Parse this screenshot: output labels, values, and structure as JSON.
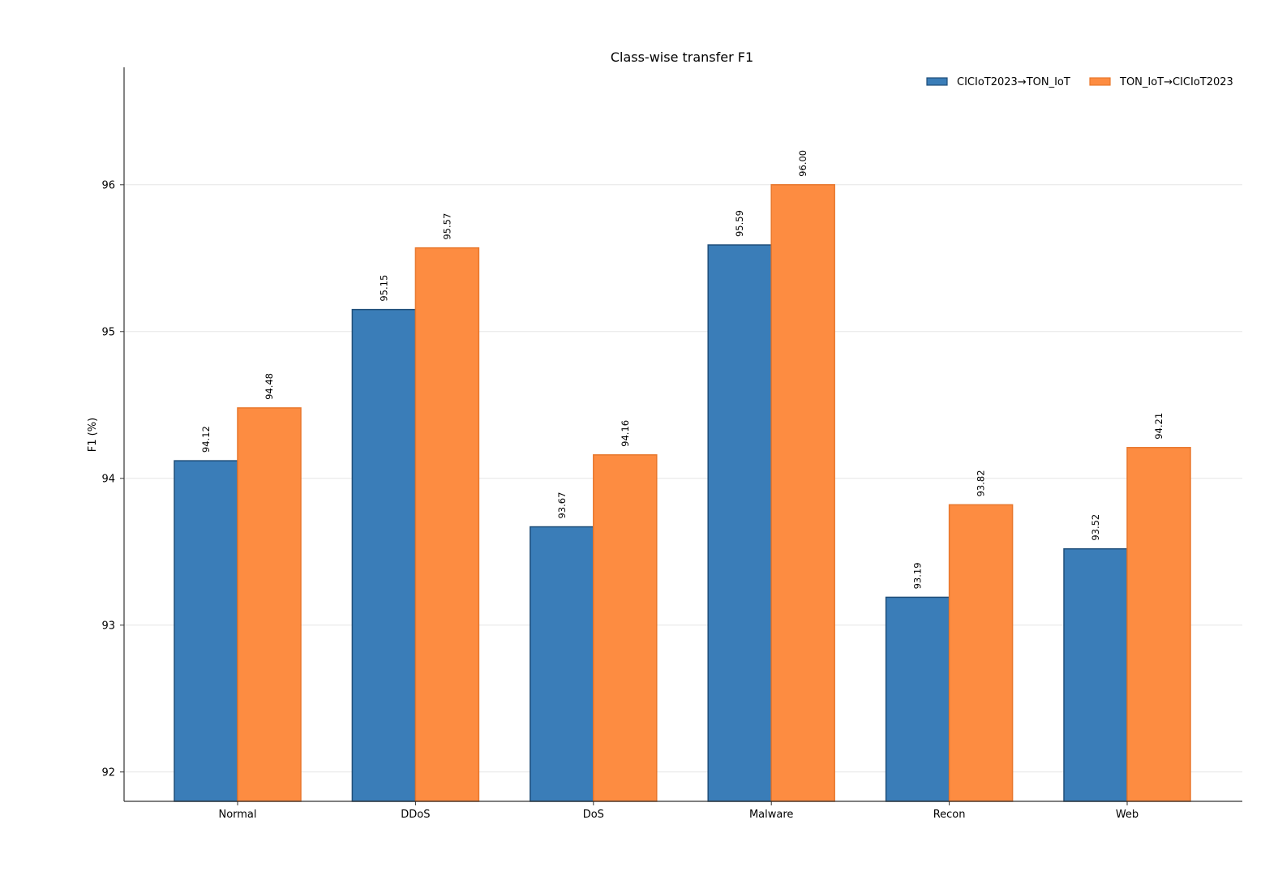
{
  "chart_data": {
    "type": "bar",
    "title": "Class-wise transfer F1",
    "xlabel": "",
    "ylabel": "F1 (%)",
    "categories": [
      "Normal",
      "DDoS",
      "DoS",
      "Malware",
      "Recon",
      "Web"
    ],
    "series": [
      {
        "name": "CICIoT2023→TON_IoT",
        "color": "#3a7db8",
        "edge_color": "#1f4e79",
        "values": [
          94.12,
          95.15,
          93.67,
          95.59,
          93.19,
          93.52
        ],
        "labels": [
          "94.12",
          "95.15",
          "93.67",
          "95.59",
          "93.19",
          "93.52"
        ]
      },
      {
        "name": "TON_IoT→CICIoT2023",
        "color": "#fd8c41",
        "edge_color": "#e8772c",
        "values": [
          94.48,
          95.57,
          94.16,
          96.0,
          93.82,
          94.21
        ],
        "labels": [
          "94.48",
          "95.57",
          "94.16",
          "96.00",
          "93.82",
          "94.21"
        ]
      }
    ],
    "ylim": [
      91.8,
      96.8
    ],
    "yticks": [
      "92",
      "93",
      "94",
      "95",
      "96"
    ],
    "grid": "horizontal",
    "legend": "top-right"
  }
}
